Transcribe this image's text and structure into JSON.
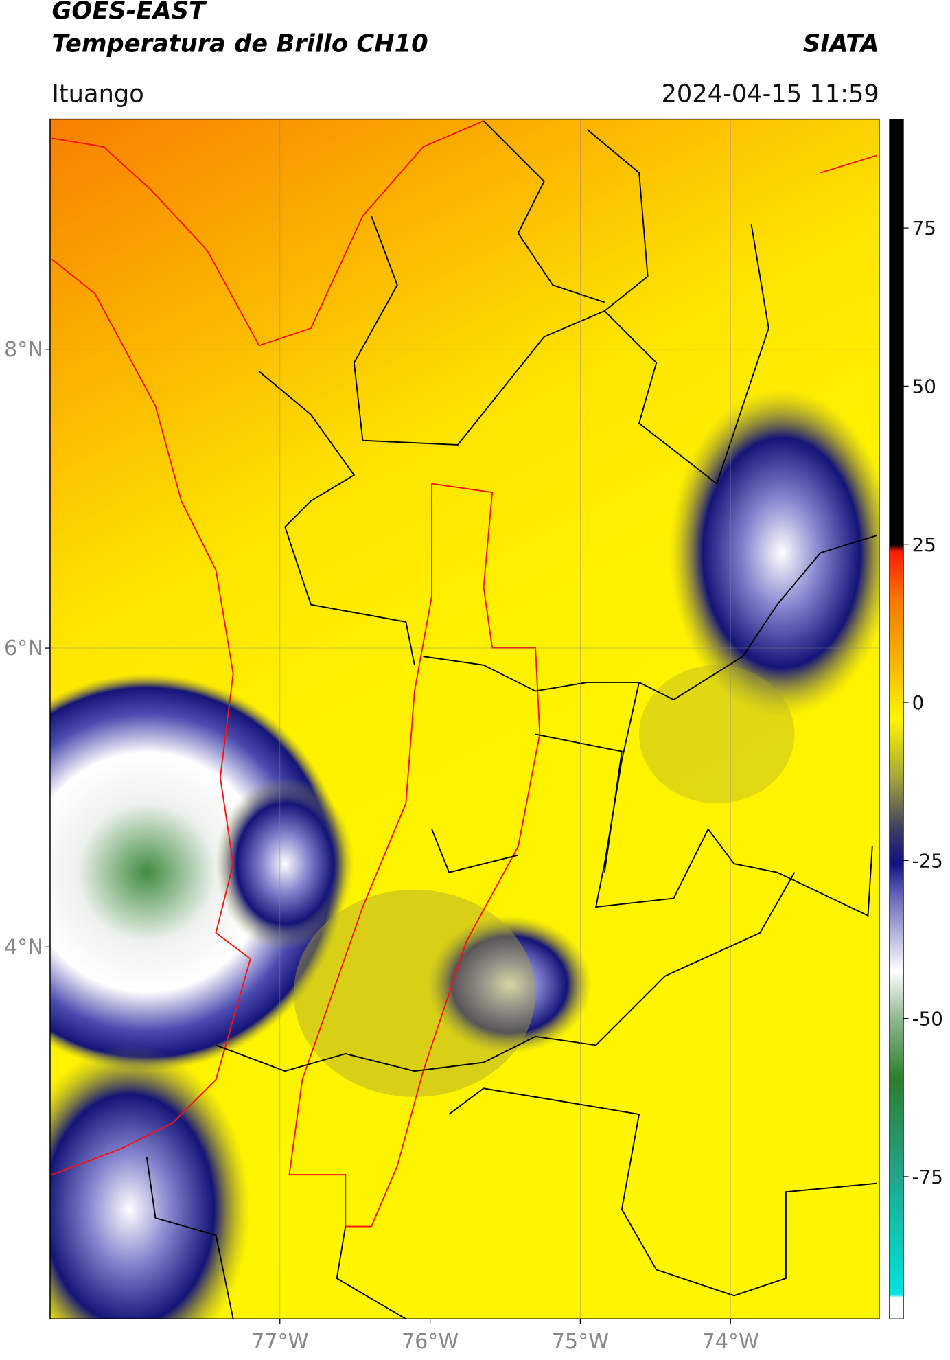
{
  "header": {
    "title": "GOES-EAST",
    "subtitle": "Temperatura de Brillo CH10",
    "source": "SIATA",
    "location": "Ituango",
    "datetime": "2024-04-15 11:59"
  },
  "map": {
    "lonlim": [
      -78.53,
      -73.01
    ],
    "latlim": [
      1.51,
      9.54
    ],
    "lat_ticks": [
      {
        "value": 8,
        "label": "8°N"
      },
      {
        "value": 6,
        "label": "6°N"
      },
      {
        "value": 4,
        "label": "4°N"
      }
    ],
    "lon_ticks": [
      {
        "value": -77,
        "label": "77°W"
      },
      {
        "value": -76,
        "label": "76°W"
      },
      {
        "value": -75,
        "label": "75°W"
      },
      {
        "value": -74,
        "label": "74°W"
      }
    ]
  },
  "colorbar": {
    "lim": [
      -97.5,
      92.2
    ],
    "ticks": [
      75,
      50,
      25,
      0,
      -25,
      -50,
      -75
    ]
  }
}
